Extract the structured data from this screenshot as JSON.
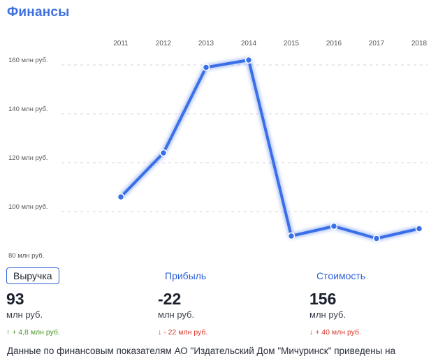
{
  "header": {
    "title": "Финансы"
  },
  "chart_data": {
    "type": "line",
    "categories": [
      "2011",
      "2012",
      "2013",
      "2014",
      "2015",
      "2016",
      "2017",
      "2018"
    ],
    "series": [
      {
        "values": [
          106,
          124,
          159,
          162,
          90,
          94,
          89,
          93
        ]
      }
    ],
    "y_ticks": [
      "160 млн руб.",
      "140 млн руб.",
      "120 млн руб.",
      "100 млн руб.",
      "80 млн руб."
    ],
    "y_tick_values": [
      160,
      140,
      120,
      100,
      80
    ],
    "ylim": [
      80,
      160
    ],
    "grid": true,
    "line_color": "#3b6fe8"
  },
  "metrics": [
    {
      "label": "Выручка",
      "value": "93",
      "unit": "млн руб.",
      "arrow": "↑",
      "delta": "+ 4,8 млн руб.",
      "trend": "up"
    },
    {
      "label": "Прибыль",
      "value": "-22",
      "unit": "млн руб.",
      "arrow": "↓",
      "delta": "- 22 млн руб.",
      "trend": "down"
    },
    {
      "label": "Стоимость",
      "value": "156",
      "unit": "млн руб.",
      "arrow": "↓",
      "delta": "+ 40 млн руб.",
      "trend": "down"
    }
  ],
  "footer": {
    "text": "Данные по финансовым показателям АО \"Издательский Дом \"Мичуринск\" приведены на"
  }
}
